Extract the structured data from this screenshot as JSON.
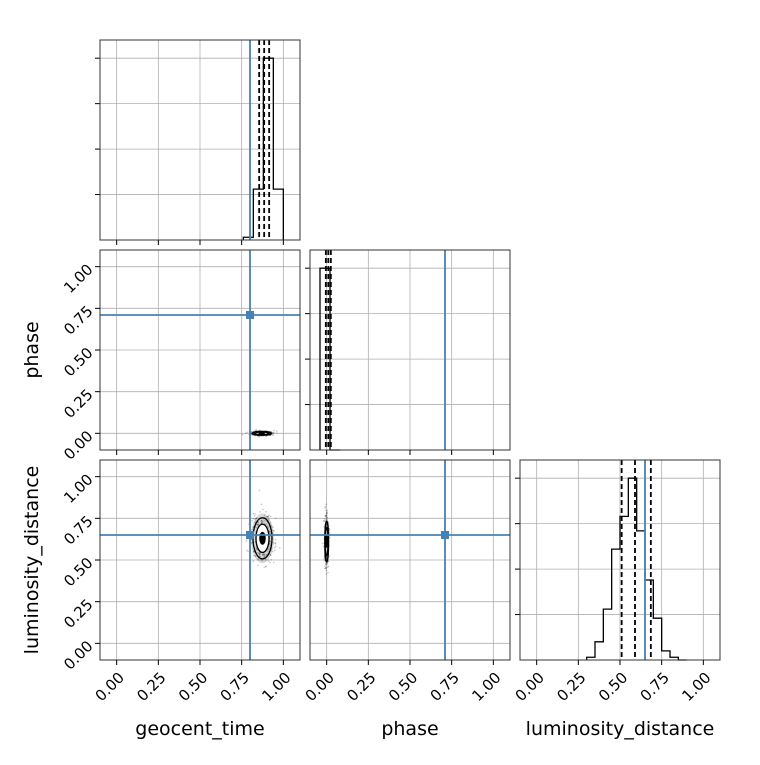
{
  "chart_data": {
    "type": "corner",
    "parameters": [
      "geocent_time",
      "phase",
      "luminosity_distance"
    ],
    "axis_labels": {
      "x": [
        "geocent_time",
        "phase",
        "luminosity_distance"
      ],
      "y": [
        "",
        "phase",
        "luminosity_distance"
      ]
    },
    "ticks": [
      0.0,
      0.25,
      0.5,
      0.75,
      1.0
    ],
    "tick_labels": [
      "0.00",
      "0.25",
      "0.50",
      "0.75",
      "1.00"
    ],
    "range": [
      -0.1,
      1.1
    ],
    "grid": true,
    "truth_color": "#4682b4",
    "truths": [
      0.8,
      0.71,
      0.65
    ],
    "quantiles": [
      [
        0.855,
        0.885,
        0.915
      ],
      [
        -0.005,
        0.01,
        0.025
      ],
      [
        0.51,
        0.59,
        0.685
      ]
    ],
    "histograms": [
      {
        "bin_edges": [
          0.76,
          0.82,
          0.88,
          0.94,
          1.0
        ],
        "counts": [
          1.5,
          28,
          100,
          28
        ]
      },
      {
        "bin_edges": [
          -0.04,
          0.02,
          0.08
        ],
        "counts": [
          100,
          0
        ]
      },
      {
        "bin_edges": [
          0.3,
          0.35,
          0.4,
          0.45,
          0.5,
          0.55,
          0.6,
          0.65,
          0.7,
          0.75,
          0.8,
          0.85,
          0.9
        ],
        "counts": [
          1.5,
          10,
          28,
          61,
          79,
          100,
          71,
          44,
          23,
          5,
          1.5,
          0
        ]
      }
    ],
    "contours_2d": [
      {
        "x_param": "geocent_time",
        "y_param": "phase",
        "center": [
          0.87,
          0.0
        ],
        "spread": [
          0.03,
          0.006
        ]
      },
      {
        "x_param": "geocent_time",
        "y_param": "luminosity_distance",
        "center": [
          0.875,
          0.63
        ],
        "spread": [
          0.03,
          0.065
        ]
      },
      {
        "x_param": "phase",
        "y_param": "luminosity_distance",
        "center": [
          0.0,
          0.61
        ],
        "spread": [
          0.006,
          0.065
        ]
      }
    ]
  }
}
